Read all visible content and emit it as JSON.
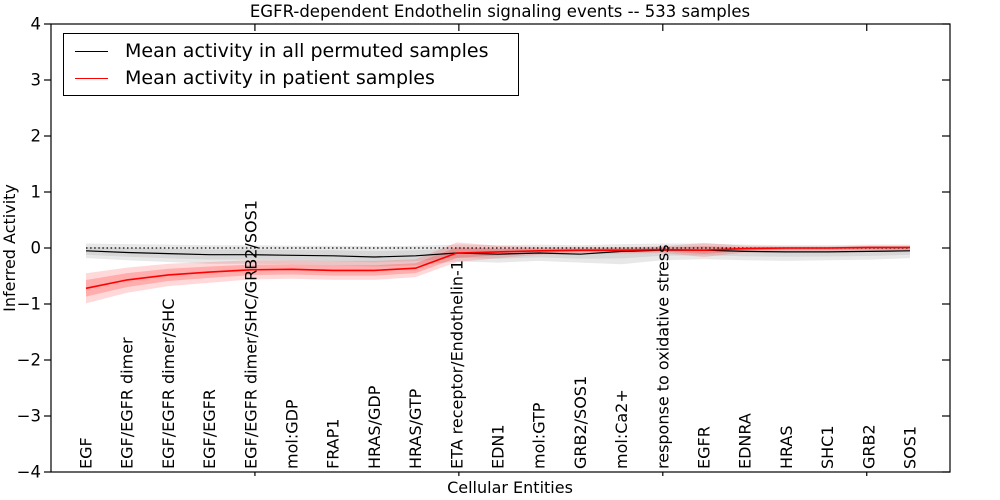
{
  "title": "EGFR-dependent Endothelin signaling events -- 533 samples",
  "chart_data": {
    "type": "line",
    "title": "EGFR-dependent Endothelin signaling events -- 533 samples",
    "xlabel": "Cellular Entities",
    "ylabel": "Inferred Activity",
    "ylim": [
      -4,
      4
    ],
    "yticks": [
      -4,
      -3,
      -2,
      -1,
      0,
      1,
      2,
      3,
      4
    ],
    "ytick_labels": [
      "−4",
      "−3",
      "−2",
      "−1",
      "0",
      "1",
      "2",
      "3",
      "4"
    ],
    "grid": false,
    "legend_position": "upper left",
    "zero_reference_line": {
      "style": "dotted",
      "color": "#000000",
      "y": 0
    },
    "minor_xtick_idx": [
      4.1,
      9.05,
      14.0,
      18.95
    ],
    "categories": [
      "EGF",
      "EGF/EGFR dimer",
      "EGF/EGFR dimer/SHC",
      "EGF/EGFR",
      "EGF/EGFR dimer/SHC/GRB2/SOS1",
      "mol:GDP",
      "FRAP1",
      "HRAS/GDP",
      "HRAS/GTP",
      "ETA receptor/Endothelin-1",
      "EDN1",
      "mol:GTP",
      "GRB2/SOS1",
      "mol:Ca2+",
      "response to oxidative stress",
      "EGFR",
      "EDNRA",
      "HRAS",
      "SHC1",
      "GRB2",
      "SOS1"
    ],
    "series": [
      {
        "name": "Mean activity in all permuted samples",
        "color": "#000000",
        "band_color": "#000000",
        "band_alpha_outer": 0.09,
        "band_alpha_inner": 0.07,
        "values": [
          -0.05,
          -0.08,
          -0.1,
          -0.12,
          -0.12,
          -0.13,
          -0.14,
          -0.16,
          -0.14,
          -0.09,
          -0.11,
          -0.09,
          -0.11,
          -0.06,
          -0.04,
          -0.04,
          -0.06,
          -0.07,
          -0.07,
          -0.06,
          -0.05
        ],
        "band_upper": [
          0.08,
          0.07,
          0.06,
          0.05,
          0.05,
          0.04,
          0.04,
          0.03,
          0.04,
          0.06,
          0.05,
          0.06,
          0.05,
          0.07,
          0.08,
          0.08,
          0.06,
          0.05,
          0.05,
          0.06,
          0.06
        ],
        "band_lower": [
          -0.18,
          -0.22,
          -0.25,
          -0.28,
          -0.28,
          -0.29,
          -0.31,
          -0.33,
          -0.31,
          -0.24,
          -0.26,
          -0.23,
          -0.26,
          -0.29,
          -0.22,
          -0.2,
          -0.22,
          -0.23,
          -0.22,
          -0.21,
          -0.18
        ]
      },
      {
        "name": "Mean activity in patient samples",
        "color": "#ff0000",
        "band_color": "#ff0000",
        "band_alpha_outer": 0.15,
        "band_alpha_inner": 0.2,
        "values": [
          -0.72,
          -0.57,
          -0.48,
          -0.43,
          -0.39,
          -0.38,
          -0.4,
          -0.4,
          -0.36,
          -0.09,
          -0.07,
          -0.05,
          -0.04,
          -0.04,
          -0.03,
          -0.04,
          -0.01,
          0.0,
          0.0,
          0.01,
          0.01
        ],
        "band_upper": [
          -0.45,
          -0.35,
          -0.28,
          -0.25,
          -0.22,
          -0.22,
          -0.23,
          -0.23,
          -0.2,
          0.1,
          0.04,
          0.02,
          0.02,
          0.02,
          0.03,
          0.09,
          0.04,
          0.03,
          0.03,
          0.04,
          0.04
        ],
        "band_lower": [
          -0.99,
          -0.8,
          -0.68,
          -0.62,
          -0.56,
          -0.55,
          -0.57,
          -0.57,
          -0.52,
          -0.25,
          -0.18,
          -0.12,
          -0.1,
          -0.1,
          -0.09,
          -0.16,
          -0.08,
          -0.06,
          -0.06,
          -0.05,
          -0.06
        ]
      }
    ]
  },
  "legend": {
    "items": [
      {
        "label": "Mean activity in all permuted samples",
        "color": "#000000"
      },
      {
        "label": "Mean activity in patient samples",
        "color": "#ff0000"
      }
    ]
  }
}
